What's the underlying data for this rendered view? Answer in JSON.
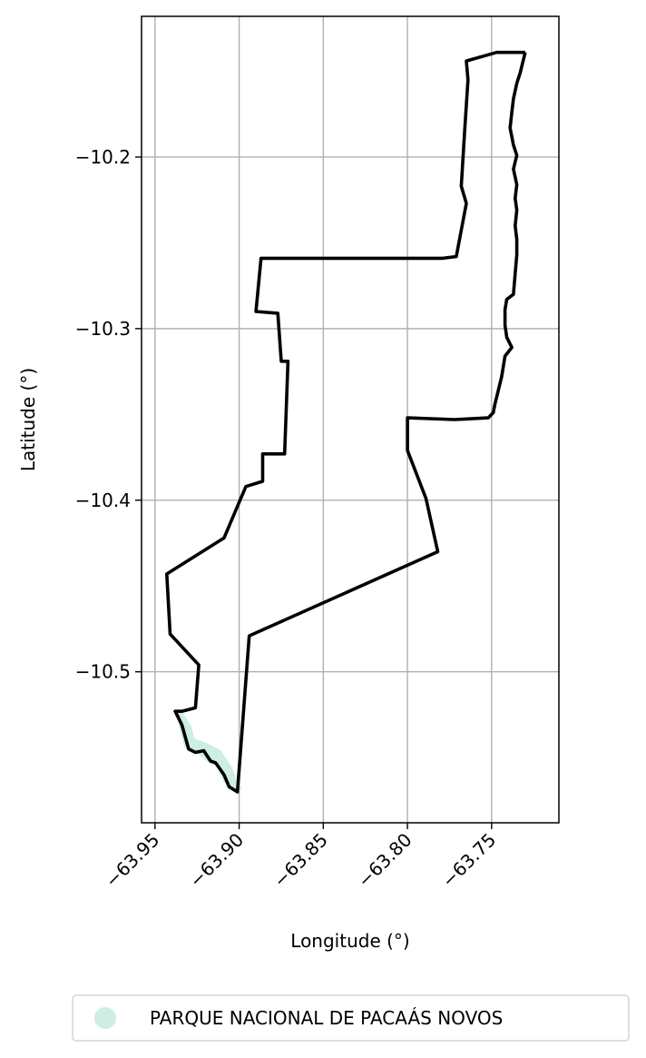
{
  "chart_data": {
    "type": "map",
    "xlabel": "Longitude (°)",
    "ylabel": "Latitude (°)",
    "xlim": [
      -63.958,
      -63.71
    ],
    "ylim": [
      -10.588,
      -10.118
    ],
    "xticks": [
      -63.95,
      -63.9,
      -63.85,
      -63.8,
      -63.75
    ],
    "xtick_labels": [
      "−63.95",
      "−63.90",
      "−63.85",
      "−63.80",
      "−63.75"
    ],
    "yticks": [
      -10.2,
      -10.3,
      -10.4,
      -10.5
    ],
    "ytick_labels": [
      "−10.2",
      "−10.3",
      "−10.4",
      "−10.5"
    ],
    "grid": true,
    "legend": {
      "placement": "below",
      "entries": [
        {
          "label": "PARQUE NACIONAL DE PACAÁS NOVOS",
          "color": "#cdeee0",
          "marker": "circle"
        }
      ]
    },
    "boundary": {
      "color": "#000000",
      "coords": [
        [
          -63.73,
          -10.139
        ],
        [
          -63.733,
          -10.151
        ],
        [
          -63.735,
          -10.157
        ],
        [
          -63.737,
          -10.166
        ],
        [
          -63.738,
          -10.174
        ],
        [
          -63.739,
          -10.183
        ],
        [
          -63.737,
          -10.193
        ],
        [
          -63.735,
          -10.199
        ],
        [
          -63.737,
          -10.207
        ],
        [
          -63.735,
          -10.216
        ],
        [
          -63.736,
          -10.224
        ],
        [
          -63.735,
          -10.231
        ],
        [
          -63.736,
          -10.24
        ],
        [
          -63.735,
          -10.248
        ],
        [
          -63.735,
          -10.257
        ],
        [
          -63.736,
          -10.268
        ],
        [
          -63.737,
          -10.28
        ],
        [
          -63.741,
          -10.283
        ],
        [
          -63.742,
          -10.289
        ],
        [
          -63.742,
          -10.298
        ],
        [
          -63.741,
          -10.305
        ],
        [
          -63.738,
          -10.311
        ],
        [
          -63.742,
          -10.316
        ],
        [
          -63.744,
          -10.328
        ],
        [
          -63.746,
          -10.336
        ],
        [
          -63.748,
          -10.344
        ],
        [
          -63.749,
          -10.349
        ],
        [
          -63.752,
          -10.352
        ],
        [
          -63.772,
          -10.353
        ],
        [
          -63.8,
          -10.352
        ],
        [
          -63.8,
          -10.371
        ],
        [
          -63.789,
          -10.399
        ],
        [
          -63.782,
          -10.43
        ],
        [
          -63.894,
          -10.479
        ],
        [
          -63.901,
          -10.57
        ],
        [
          -63.906,
          -10.567
        ],
        [
          -63.909,
          -10.56
        ],
        [
          -63.914,
          -10.553
        ],
        [
          -63.917,
          -10.552
        ],
        [
          -63.921,
          -10.546
        ],
        [
          -63.926,
          -10.547
        ],
        [
          -63.93,
          -10.545
        ],
        [
          -63.932,
          -10.538
        ],
        [
          -63.934,
          -10.531
        ],
        [
          -63.938,
          -10.523
        ],
        [
          -63.934,
          -10.523
        ],
        [
          -63.926,
          -10.521
        ],
        [
          -63.924,
          -10.496
        ],
        [
          -63.941,
          -10.478
        ],
        [
          -63.943,
          -10.443
        ],
        [
          -63.909,
          -10.422
        ],
        [
          -63.896,
          -10.392
        ],
        [
          -63.886,
          -10.389
        ],
        [
          -63.886,
          -10.373
        ],
        [
          -63.873,
          -10.373
        ],
        [
          -63.871,
          -10.319
        ],
        [
          -63.875,
          -10.319
        ],
        [
          -63.877,
          -10.291
        ],
        [
          -63.89,
          -10.29
        ],
        [
          -63.887,
          -10.259
        ],
        [
          -63.853,
          -10.259
        ],
        [
          -63.82,
          -10.259
        ],
        [
          -63.798,
          -10.259
        ],
        [
          -63.779,
          -10.259
        ],
        [
          -63.771,
          -10.258
        ],
        [
          -63.765,
          -10.227
        ],
        [
          -63.768,
          -10.217
        ],
        [
          -63.766,
          -10.185
        ],
        [
          -63.764,
          -10.155
        ],
        [
          -63.765,
          -10.144
        ],
        [
          -63.747,
          -10.139
        ],
        [
          -63.73,
          -10.139
        ]
      ]
    },
    "park_fill": {
      "color": "#cdeee0",
      "coords": [
        [
          -63.935,
          -10.525
        ],
        [
          -63.93,
          -10.532
        ],
        [
          -63.928,
          -10.54
        ],
        [
          -63.92,
          -10.543
        ],
        [
          -63.912,
          -10.547
        ],
        [
          -63.906,
          -10.556
        ],
        [
          -63.902,
          -10.566
        ],
        [
          -63.9,
          -10.568
        ],
        [
          -63.908,
          -10.563
        ],
        [
          -63.912,
          -10.554
        ],
        [
          -63.918,
          -10.551
        ],
        [
          -63.925,
          -10.545
        ],
        [
          -63.931,
          -10.543
        ],
        [
          -63.934,
          -10.532
        ],
        [
          -63.935,
          -10.525
        ]
      ]
    }
  }
}
